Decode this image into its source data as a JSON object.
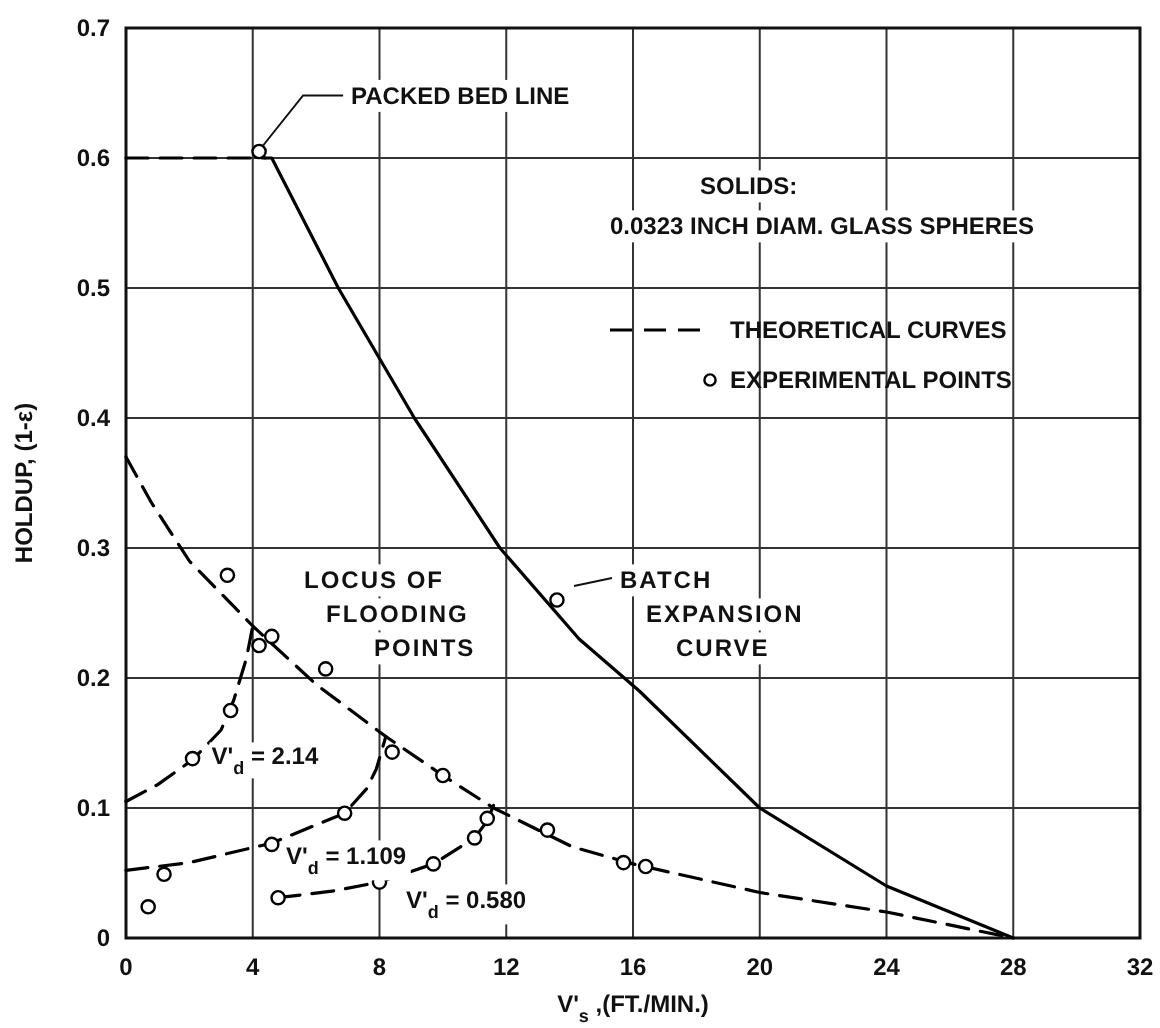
{
  "chart_data": {
    "type": "line",
    "xlabel": "V'$_{s}$ ,(FT./MIN.)",
    "ylabel": "HOLDUP, (1-ε)",
    "xlim": [
      0,
      32
    ],
    "xticks": [
      0,
      4,
      8,
      12,
      16,
      20,
      24,
      28,
      32
    ],
    "ylim": [
      0,
      0.7
    ],
    "yticks": [
      {
        "value": 0,
        "label": "0"
      },
      0.1,
      0.2,
      0.3,
      0.4,
      0.5,
      0.6,
      0.7
    ],
    "grid": true,
    "legend": "top right",
    "series": [
      {
        "line_style": "dashed",
        "color": "#000000",
        "x": [
          0,
          4.4
        ],
        "values": [
          0.6,
          0.6
        ]
      },
      {
        "line_style": "solid",
        "color": "#000000",
        "x": [
          4.4,
          4.6,
          6.7,
          9.1,
          11.8,
          14.3,
          16.2,
          20,
          24,
          28
        ],
        "values": [
          0.6,
          0.6,
          0.5,
          0.4,
          0.3,
          0.23,
          0.19,
          0.1,
          0.04,
          0
        ]
      },
      {
        "name": "THEORETICAL CURVES",
        "line_style": "dashed",
        "color": "#000000",
        "x": [
          0,
          0.8,
          2,
          4,
          6,
          8.2,
          10,
          11.6,
          14.1,
          16,
          20,
          24,
          28
        ],
        "values": [
          0.37,
          0.335,
          0.29,
          0.24,
          0.195,
          0.155,
          0.125,
          0.1,
          0.07,
          0.057,
          0.035,
          0.02,
          0
        ]
      },
      {
        "line_style": "dashed",
        "color": "#000000",
        "x": [
          0,
          1,
          2.1,
          3,
          3.4,
          3.8,
          4
        ],
        "values": [
          0.105,
          0.118,
          0.137,
          0.16,
          0.183,
          0.215,
          0.24
        ]
      },
      {
        "line_style": "dashed",
        "color": "#000000",
        "x": [
          0,
          2,
          4.6,
          6.9,
          7.6,
          7.9,
          8.2
        ],
        "values": [
          0.052,
          0.058,
          0.073,
          0.096,
          0.115,
          0.13,
          0.155
        ]
      },
      {
        "line_style": "dashed",
        "color": "#000000",
        "x": [
          4.8,
          6.5,
          8,
          9.7,
          11,
          11.4,
          11.6
        ],
        "values": [
          0.031,
          0.036,
          0.043,
          0.057,
          0.077,
          0.09,
          0.102
        ]
      },
      {
        "type": "scatter",
        "name": "EXPERIMENTAL POINTS",
        "marker": "circle",
        "color": "#000000",
        "x": [
          4.2,
          3.2,
          4.2,
          4.6,
          6.3,
          3.3,
          2.1,
          0.7,
          1.2,
          4.6,
          6.9,
          8.4,
          10,
          11.4,
          13.3,
          4.8,
          8,
          9.7,
          11,
          13.6,
          15.7,
          16.4
        ],
        "values": [
          0.605,
          0.279,
          0.225,
          0.232,
          0.207,
          0.175,
          0.138,
          0.024,
          0.049,
          0.072,
          0.096,
          0.143,
          0.125,
          0.092,
          0.083,
          0.031,
          0.043,
          0.057,
          0.077,
          0.26,
          0.058,
          0.055
        ]
      }
    ],
    "annotations": [
      {
        "text": "PACKED BED LINE",
        "x": 4.2,
        "y": 0.605
      },
      "SOLIDS:",
      "0.0323 INCH DIAM. GLASS SPHERES",
      "LOCUS OF FLOODING POINTS",
      "BATCH EXPANSION CURVE",
      {
        "text": "V'$_{d}$ = 2.14",
        "x": 2.7,
        "y": 0.14
      },
      "V'$_{d}$ = 1.109",
      "V'$_{d}$ = 0.580"
    ]
  }
}
